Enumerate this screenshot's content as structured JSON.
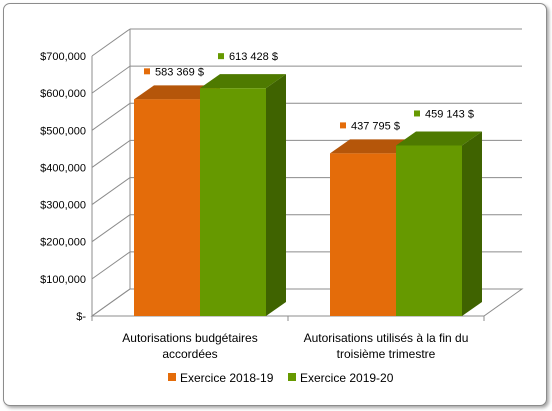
{
  "chart_data": {
    "type": "bar",
    "categories": [
      "Autorisations budgétaires accordées",
      "Autorisations utilisés à la fin du troisième trimestre"
    ],
    "category_label_lines": [
      [
        "Autorisations budgétaires",
        "accordées"
      ],
      [
        "Autorisations utilisés à la fin du",
        "troisième trimestre"
      ]
    ],
    "series": [
      {
        "name": "Exercice 2018-19",
        "values": [
          583369,
          437795
        ],
        "labels": [
          "583 369 $",
          "437 795 $"
        ],
        "color": "#E46C0A",
        "top_color": "#B5560A",
        "side_color": "#A84E08"
      },
      {
        "name": "Exercice 2019-20",
        "values": [
          613428,
          459143
        ],
        "labels": [
          "613 428 $",
          "459 143 $"
        ],
        "color": "#669900",
        "top_color": "#4E7A00",
        "side_color": "#3F6300"
      }
    ],
    "yticks": [
      0,
      100000,
      200000,
      300000,
      400000,
      500000,
      600000,
      700000
    ],
    "ytick_labels": [
      "$-",
      "$100,000",
      "$200,000",
      "$300,000",
      "$400,000",
      "$500,000",
      "$600,000",
      "$700,000"
    ],
    "ylim": [
      0,
      700000
    ],
    "grid": true,
    "three_d": true,
    "legend_position": "bottom",
    "title": "",
    "xlabel": "",
    "ylabel": ""
  }
}
